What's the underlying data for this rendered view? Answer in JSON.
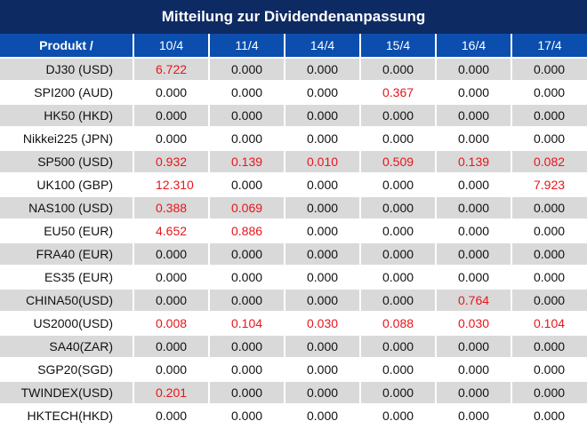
{
  "title": "Mitteilung zur Dividendenanpassung",
  "colors": {
    "header_dark": "#0e2a63",
    "header_blue": "#0b4eae",
    "highlight": "#e8151b",
    "row_shade": "#d9d9d9"
  },
  "columns": [
    "Produkt /",
    "10/4",
    "11/4",
    "14/4",
    "15/4",
    "16/4",
    "17/4"
  ],
  "rows": [
    {
      "name": "DJ30 (USD)",
      "values": [
        "6.722",
        "0.000",
        "0.000",
        "0.000",
        "0.000",
        "0.000"
      ],
      "highlight": [
        true,
        false,
        false,
        false,
        false,
        false
      ]
    },
    {
      "name": "SPI200 (AUD)",
      "values": [
        "0.000",
        "0.000",
        "0.000",
        "0.367",
        "0.000",
        "0.000"
      ],
      "highlight": [
        false,
        false,
        false,
        true,
        false,
        false
      ]
    },
    {
      "name": "HK50 (HKD)",
      "values": [
        "0.000",
        "0.000",
        "0.000",
        "0.000",
        "0.000",
        "0.000"
      ],
      "highlight": [
        false,
        false,
        false,
        false,
        false,
        false
      ]
    },
    {
      "name": "Nikkei225 (JPN)",
      "values": [
        "0.000",
        "0.000",
        "0.000",
        "0.000",
        "0.000",
        "0.000"
      ],
      "highlight": [
        false,
        false,
        false,
        false,
        false,
        false
      ]
    },
    {
      "name": "SP500 (USD)",
      "values": [
        "0.932",
        "0.139",
        "0.010",
        "0.509",
        "0.139",
        "0.082"
      ],
      "highlight": [
        true,
        true,
        true,
        true,
        true,
        true
      ]
    },
    {
      "name": "UK100 (GBP)",
      "values": [
        "12.310",
        "0.000",
        "0.000",
        "0.000",
        "0.000",
        "7.923"
      ],
      "highlight": [
        true,
        false,
        false,
        false,
        false,
        true
      ]
    },
    {
      "name": "NAS100 (USD)",
      "values": [
        "0.388",
        "0.069",
        "0.000",
        "0.000",
        "0.000",
        "0.000"
      ],
      "highlight": [
        true,
        true,
        false,
        false,
        false,
        false
      ]
    },
    {
      "name": "EU50 (EUR)",
      "values": [
        "4.652",
        "0.886",
        "0.000",
        "0.000",
        "0.000",
        "0.000"
      ],
      "highlight": [
        true,
        true,
        false,
        false,
        false,
        false
      ]
    },
    {
      "name": "FRA40 (EUR)",
      "values": [
        "0.000",
        "0.000",
        "0.000",
        "0.000",
        "0.000",
        "0.000"
      ],
      "highlight": [
        false,
        false,
        false,
        false,
        false,
        false
      ]
    },
    {
      "name": "ES35 (EUR)",
      "values": [
        "0.000",
        "0.000",
        "0.000",
        "0.000",
        "0.000",
        "0.000"
      ],
      "highlight": [
        false,
        false,
        false,
        false,
        false,
        false
      ]
    },
    {
      "name": "CHINA50(USD)",
      "values": [
        "0.000",
        "0.000",
        "0.000",
        "0.000",
        "0.764",
        "0.000"
      ],
      "highlight": [
        false,
        false,
        false,
        false,
        true,
        false
      ]
    },
    {
      "name": "US2000(USD)",
      "values": [
        "0.008",
        "0.104",
        "0.030",
        "0.088",
        "0.030",
        "0.104"
      ],
      "highlight": [
        true,
        true,
        true,
        true,
        true,
        true
      ]
    },
    {
      "name": "SA40(ZAR)",
      "values": [
        "0.000",
        "0.000",
        "0.000",
        "0.000",
        "0.000",
        "0.000"
      ],
      "highlight": [
        false,
        false,
        false,
        false,
        false,
        false
      ]
    },
    {
      "name": "SGP20(SGD)",
      "values": [
        "0.000",
        "0.000",
        "0.000",
        "0.000",
        "0.000",
        "0.000"
      ],
      "highlight": [
        false,
        false,
        false,
        false,
        false,
        false
      ]
    },
    {
      "name": "TWINDEX(USD)",
      "values": [
        "0.201",
        "0.000",
        "0.000",
        "0.000",
        "0.000",
        "0.000"
      ],
      "highlight": [
        true,
        false,
        false,
        false,
        false,
        false
      ]
    },
    {
      "name": "HKTECH(HKD)",
      "values": [
        "0.000",
        "0.000",
        "0.000",
        "0.000",
        "0.000",
        "0.000"
      ],
      "highlight": [
        false,
        false,
        false,
        false,
        false,
        false
      ]
    }
  ]
}
